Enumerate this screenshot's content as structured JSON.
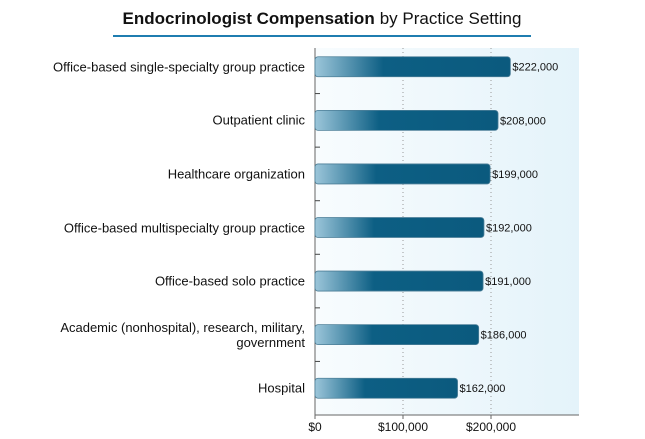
{
  "chart_data": {
    "type": "hbar",
    "title": [
      "Endocrinologist Compensation",
      "by Practice Setting"
    ],
    "categories": [
      "Office-based single-specialty group practice",
      "Outpatient clinic",
      "Healthcare organization",
      "Office-based multispecialty group practice",
      "Office-based solo practice",
      "Academic (nonhospital), research, military,\ngovernment",
      "Hospital"
    ],
    "values": [
      222000,
      208000,
      199000,
      192000,
      191000,
      186000,
      162000
    ],
    "value_labels": [
      "$222,000",
      "$208,000",
      "$199,000",
      "$192,000",
      "$191,000",
      "$186,000",
      "$162,000"
    ],
    "color": "#0b5c80",
    "xlim": [
      0,
      300000
    ],
    "xticks": [
      {
        "value": 0,
        "label": "$0"
      },
      {
        "value": 100000,
        "label": "$100,000"
      },
      {
        "value": 200000,
        "label": "$200,000"
      }
    ],
    "grid": true
  }
}
